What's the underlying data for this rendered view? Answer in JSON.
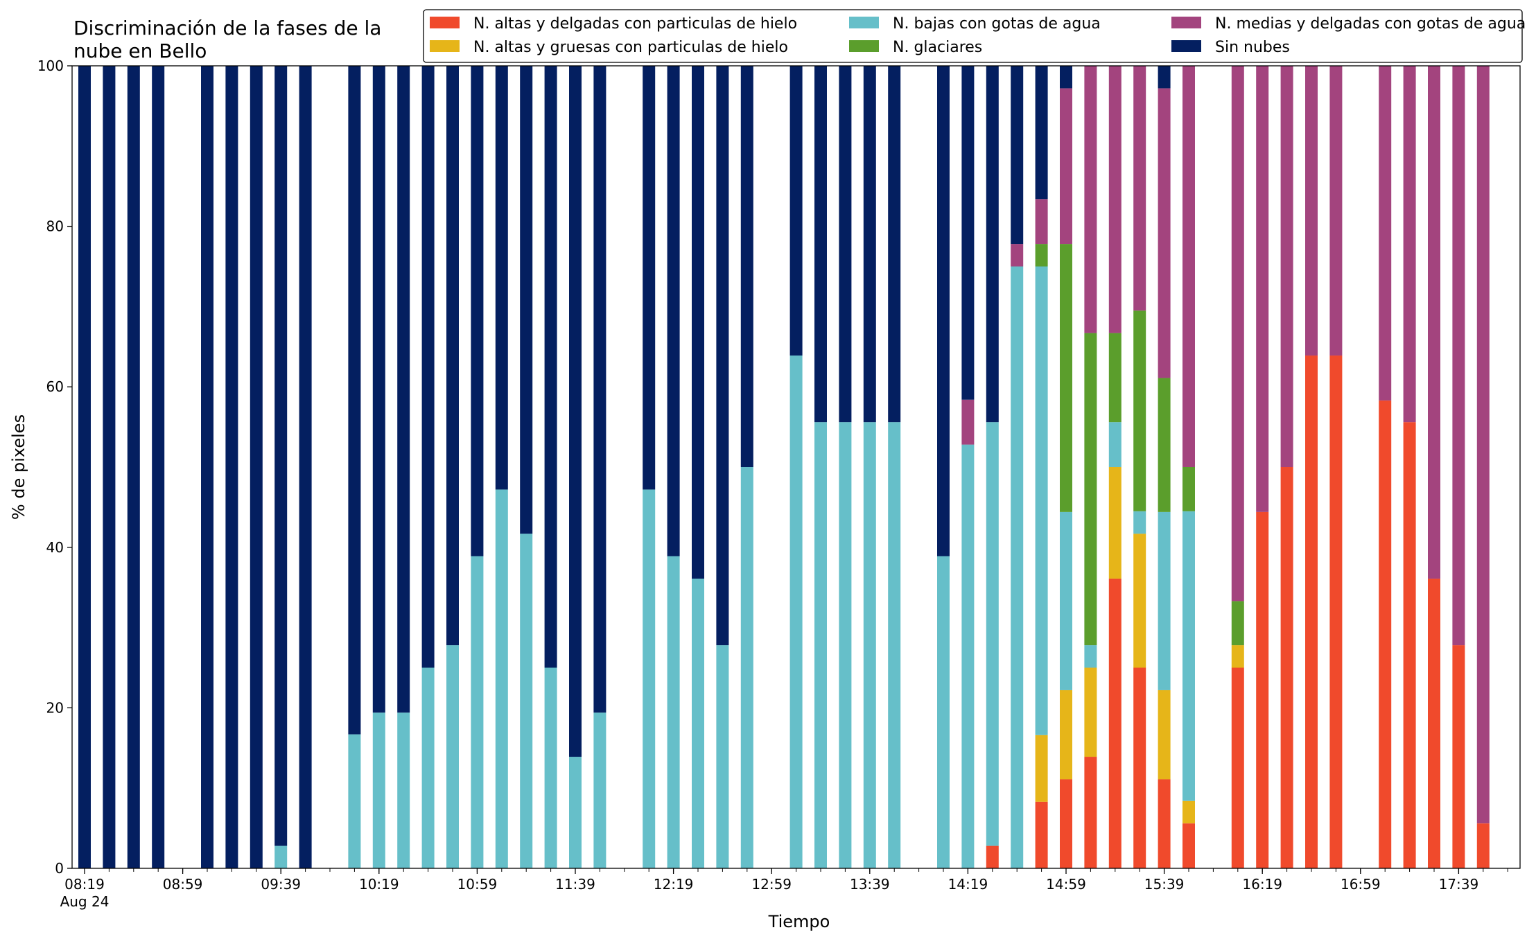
{
  "chart_data": {
    "type": "bar",
    "stacked": true,
    "title_lines": [
      "Discriminación de la fases de la",
      "nube en Bello"
    ],
    "xlabel": "Tiempo",
    "ylabel": "% de pixeles",
    "ylim": [
      0,
      100
    ],
    "yticks": [
      "0",
      "20",
      "40",
      "60",
      "80",
      "100"
    ],
    "xticks": [
      "08:19",
      "08:59",
      "09:39",
      "10:19",
      "10:59",
      "11:39",
      "12:19",
      "12:59",
      "13:39",
      "14:19",
      "14:59",
      "15:39",
      "16:19",
      "16:59",
      "17:39"
    ],
    "x_date_label": "Aug 24",
    "slot_minutes": 10,
    "legend_position": "top-right",
    "grid": false,
    "series": [
      {
        "name": "N. altas y delgadas con particulas de hielo",
        "color": "#f04a2c"
      },
      {
        "name": "N. altas y gruesas con particulas de hielo",
        "color": "#e6b519"
      },
      {
        "name": "N. bajas con gotas de agua",
        "color": "#66bfc9"
      },
      {
        "name": "N. glaciares",
        "color": "#5b9e2c"
      },
      {
        "name": "N. medias y delgadas con gotas de agua",
        "color": "#a3447e"
      },
      {
        "name": "Sin nubes",
        "color": "#041f60"
      }
    ],
    "bars": [
      {
        "time": "08:19",
        "values": [
          0,
          0,
          0,
          0,
          0,
          100
        ]
      },
      {
        "time": "08:29",
        "values": [
          0,
          0,
          0,
          0,
          0,
          100
        ]
      },
      {
        "time": "08:39",
        "values": [
          0,
          0,
          0,
          0,
          0,
          100
        ]
      },
      {
        "time": "08:49",
        "values": [
          0,
          0,
          0,
          0,
          0,
          100
        ]
      },
      {
        "time": "09:09",
        "values": [
          0,
          0,
          0,
          0,
          0,
          100
        ]
      },
      {
        "time": "09:19",
        "values": [
          0,
          0,
          0,
          0,
          0,
          100
        ]
      },
      {
        "time": "09:29",
        "values": [
          0,
          0,
          0,
          0,
          0,
          100
        ]
      },
      {
        "time": "09:39",
        "values": [
          0,
          0,
          2.8,
          0,
          0,
          97.2
        ]
      },
      {
        "time": "09:49",
        "values": [
          0,
          0,
          0,
          0,
          0,
          100
        ]
      },
      {
        "time": "10:09",
        "values": [
          0,
          0,
          16.7,
          0,
          0,
          83.3
        ]
      },
      {
        "time": "10:19",
        "values": [
          0,
          0,
          19.4,
          0,
          0,
          80.6
        ]
      },
      {
        "time": "10:29",
        "values": [
          0,
          0,
          19.4,
          0,
          0,
          80.6
        ]
      },
      {
        "time": "10:39",
        "values": [
          0,
          0,
          25,
          0,
          0,
          75
        ]
      },
      {
        "time": "10:49",
        "values": [
          0,
          0,
          27.8,
          0,
          0,
          72.2
        ]
      },
      {
        "time": "10:59",
        "values": [
          0,
          0,
          38.9,
          0,
          0,
          61.1
        ]
      },
      {
        "time": "11:09",
        "values": [
          0,
          0,
          47.2,
          0,
          0,
          52.8
        ]
      },
      {
        "time": "11:19",
        "values": [
          0,
          0,
          41.7,
          0,
          0,
          58.3
        ]
      },
      {
        "time": "11:29",
        "values": [
          0,
          0,
          25,
          0,
          0,
          75
        ]
      },
      {
        "time": "11:39",
        "values": [
          0,
          0,
          13.9,
          0,
          0,
          86.1
        ]
      },
      {
        "time": "11:49",
        "values": [
          0,
          0,
          19.4,
          0,
          0,
          80.6
        ]
      },
      {
        "time": "12:09",
        "values": [
          0,
          0,
          47.2,
          0,
          0,
          52.8
        ]
      },
      {
        "time": "12:19",
        "values": [
          0,
          0,
          38.9,
          0,
          0,
          61.1
        ]
      },
      {
        "time": "12:29",
        "values": [
          0,
          0,
          36.1,
          0,
          0,
          63.9
        ]
      },
      {
        "time": "12:39",
        "values": [
          0,
          0,
          27.8,
          0,
          0,
          72.2
        ]
      },
      {
        "time": "12:49",
        "values": [
          0,
          0,
          50,
          0,
          0,
          50
        ]
      },
      {
        "time": "13:09",
        "values": [
          0,
          0,
          63.9,
          0,
          0,
          36.1
        ]
      },
      {
        "time": "13:19",
        "values": [
          0,
          0,
          55.6,
          0,
          0,
          44.4
        ]
      },
      {
        "time": "13:29",
        "values": [
          0,
          0,
          55.6,
          0,
          0,
          44.4
        ]
      },
      {
        "time": "13:39",
        "values": [
          0,
          0,
          55.6,
          0,
          0,
          44.4
        ]
      },
      {
        "time": "13:49",
        "values": [
          0,
          0,
          55.6,
          0,
          0,
          44.4
        ]
      },
      {
        "time": "14:09",
        "values": [
          0,
          0,
          38.9,
          0,
          0,
          61.1
        ]
      },
      {
        "time": "14:19",
        "values": [
          0,
          0,
          52.8,
          0,
          5.6,
          41.6
        ]
      },
      {
        "time": "14:29",
        "values": [
          2.8,
          0,
          52.8,
          0,
          0,
          44.4
        ]
      },
      {
        "time": "14:39",
        "values": [
          0,
          0,
          75,
          0,
          2.8,
          22.2
        ]
      },
      {
        "time": "14:49",
        "values": [
          8.3,
          8.3,
          58.4,
          2.8,
          5.6,
          16.6
        ]
      },
      {
        "time": "14:59",
        "values": [
          11.1,
          11.1,
          22.2,
          33.4,
          19.4,
          2.8
        ]
      },
      {
        "time": "15:09",
        "values": [
          13.9,
          11.1,
          2.8,
          38.9,
          33.3,
          0
        ]
      },
      {
        "time": "15:19",
        "values": [
          36.1,
          13.9,
          5.6,
          11.1,
          33.3,
          0
        ]
      },
      {
        "time": "15:29",
        "values": [
          25,
          16.7,
          2.8,
          25,
          30.5,
          0
        ]
      },
      {
        "time": "15:39",
        "values": [
          11.1,
          11.1,
          22.2,
          16.7,
          36.1,
          2.8
        ]
      },
      {
        "time": "15:49",
        "values": [
          5.6,
          2.8,
          36.1,
          5.5,
          50,
          0
        ]
      },
      {
        "time": "16:09",
        "values": [
          25,
          2.8,
          0,
          5.5,
          66.7,
          0
        ]
      },
      {
        "time": "16:19",
        "values": [
          44.4,
          0,
          0,
          0,
          55.6,
          0
        ]
      },
      {
        "time": "16:29",
        "values": [
          50,
          0,
          0,
          0,
          50,
          0
        ]
      },
      {
        "time": "16:39",
        "values": [
          63.9,
          0,
          0,
          0,
          36.1,
          0
        ]
      },
      {
        "time": "16:49",
        "values": [
          63.9,
          0,
          0,
          0,
          36.1,
          0
        ]
      },
      {
        "time": "17:09",
        "values": [
          58.3,
          0,
          0,
          0,
          41.7,
          0
        ]
      },
      {
        "time": "17:19",
        "values": [
          55.6,
          0,
          0,
          0,
          44.4,
          0
        ]
      },
      {
        "time": "17:29",
        "values": [
          36.1,
          0,
          0,
          0,
          63.9,
          0
        ]
      },
      {
        "time": "17:39",
        "values": [
          27.8,
          0,
          0,
          0,
          72.2,
          0
        ]
      },
      {
        "time": "17:49",
        "values": [
          5.6,
          0,
          0,
          0,
          94.4,
          0
        ]
      }
    ]
  }
}
